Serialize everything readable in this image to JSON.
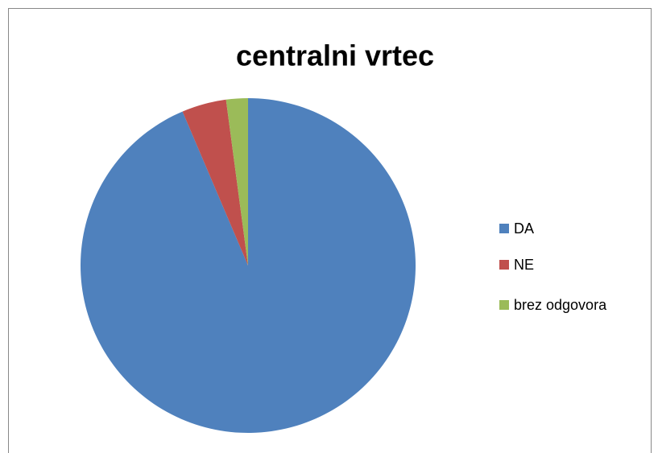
{
  "chart_data": {
    "type": "pie",
    "title": "centralni vrtec",
    "categories": [
      "DA",
      "NE",
      "brez odgovora"
    ],
    "values": [
      93.6,
      4.3,
      2.1
    ],
    "colors": [
      "#4f81bd",
      "#c0504d",
      "#9bbb59"
    ],
    "legend": "right"
  }
}
